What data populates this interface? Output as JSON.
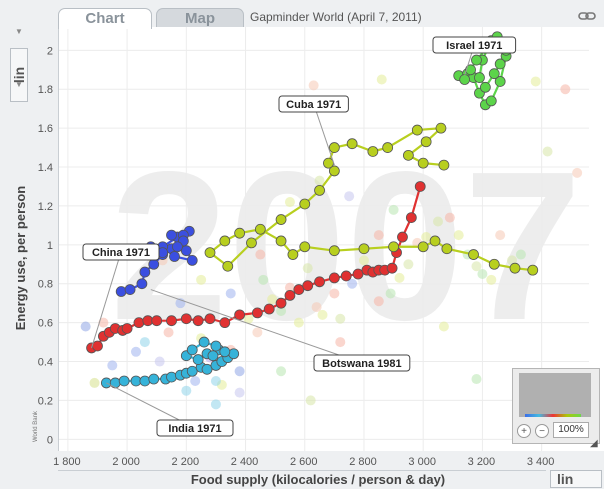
{
  "tabs": [
    {
      "label": "Chart",
      "active": true
    },
    {
      "label": "Map",
      "active": false
    }
  ],
  "page_title": "Gapminder World (April 7, 2011)",
  "y_scale": "lin",
  "x_scale": "lin",
  "zoom_level": "100%",
  "source_note": "World Bank",
  "icons": {
    "link": "link-icon",
    "zoom_in": "zoom-in-icon",
    "zoom_out": "zoom-out-icon"
  },
  "chart_data": {
    "type": "scatter",
    "year_watermark": "2007",
    "xlabel": "Food supply (kilocalories / person & day)",
    "ylabel": "Energy use, per person",
    "xlim": [
      1770,
      3560
    ],
    "ylim": [
      -0.06,
      2.12
    ],
    "x_ticks": [
      1800,
      2000,
      2200,
      2400,
      2600,
      2800,
      3000,
      3200,
      3400
    ],
    "x_tick_labels": [
      "1 800",
      "2 000",
      "2 200",
      "2 400",
      "2 600",
      "2 800",
      "3 000",
      "3 200",
      "3 400"
    ],
    "y_ticks": [
      0,
      0.2,
      0.4,
      0.6,
      0.8,
      1,
      1.2,
      1.4,
      1.6,
      1.8,
      2
    ],
    "y_tick_labels": [
      "0",
      "0.2",
      "0.4",
      "0.6",
      "0.8",
      "1",
      "1.2",
      "1.4",
      "1.6",
      "1.8",
      "2"
    ],
    "grid": true,
    "series": [
      {
        "color": "#e03131",
        "x": [
          1880,
          1900,
          1920,
          1940,
          1960,
          1985,
          2000,
          2040,
          2070,
          2100,
          2150,
          2200,
          2240,
          2280,
          2330,
          2380,
          2440,
          2480,
          2520,
          2550,
          2580,
          2610,
          2650,
          2700,
          2740,
          2780,
          2810,
          2830,
          2850,
          2870,
          2895,
          2910,
          2930,
          2960,
          2990
        ],
        "y": [
          0.47,
          0.48,
          0.53,
          0.55,
          0.57,
          0.56,
          0.57,
          0.6,
          0.61,
          0.61,
          0.61,
          0.62,
          0.61,
          0.62,
          0.6,
          0.64,
          0.65,
          0.67,
          0.7,
          0.74,
          0.77,
          0.79,
          0.81,
          0.83,
          0.84,
          0.85,
          0.87,
          0.86,
          0.87,
          0.87,
          0.88,
          0.96,
          1.04,
          1.14,
          1.3
        ]
      },
      {
        "color": "#3b4fe0",
        "x": [
          1980,
          2010,
          2050,
          2060,
          2090,
          2120,
          2150,
          2180,
          2200,
          2220,
          2160,
          2120,
          2170,
          2210,
          2190,
          2150,
          2190,
          2170,
          2120,
          2080
        ],
        "y": [
          0.76,
          0.77,
          0.8,
          0.86,
          0.9,
          0.95,
          0.98,
          1.02,
          0.97,
          0.92,
          0.94,
          0.99,
          1.04,
          1.07,
          1.05,
          1.05,
          1.02,
          0.99,
          0.96,
          0.99
        ]
      },
      {
        "color": "#36b3d9",
        "x": [
          1930,
          1960,
          1990,
          2030,
          2060,
          2090,
          2130,
          2150,
          2180,
          2200,
          2220,
          2250,
          2270,
          2300,
          2320,
          2340,
          2360,
          2310,
          2270,
          2240,
          2200,
          2220,
          2260,
          2300,
          2330,
          2290
        ],
        "y": [
          0.29,
          0.29,
          0.3,
          0.3,
          0.3,
          0.31,
          0.31,
          0.32,
          0.33,
          0.34,
          0.35,
          0.37,
          0.36,
          0.38,
          0.4,
          0.42,
          0.44,
          0.46,
          0.44,
          0.41,
          0.43,
          0.46,
          0.5,
          0.48,
          0.45,
          0.43
        ]
      },
      {
        "color": "#b8cf1f",
        "x": [
          3370,
          3310,
          3240,
          3170,
          3080,
          3040,
          3000,
          2900,
          2800,
          2700,
          2600,
          2560,
          2520,
          2450,
          2380,
          2330,
          2280,
          2340,
          2420,
          2520,
          2600,
          2650,
          2700,
          2680,
          2700,
          2760,
          2830,
          2880,
          2980,
          3060,
          3010,
          2950,
          3000,
          3070
        ],
        "y": [
          0.87,
          0.88,
          0.9,
          0.95,
          0.98,
          1.02,
          0.99,
          0.99,
          0.98,
          0.97,
          0.99,
          0.95,
          1.02,
          1.08,
          1.06,
          1.02,
          0.96,
          0.89,
          1.01,
          1.13,
          1.21,
          1.28,
          1.38,
          1.42,
          1.5,
          1.52,
          1.48,
          1.5,
          1.59,
          1.6,
          1.53,
          1.46,
          1.42,
          1.41
        ]
      },
      {
        "color": "#5cd44a",
        "x": [
          3120,
          3150,
          3170,
          3190,
          3210,
          3230,
          3260,
          3280,
          3230,
          3200,
          3190,
          3210,
          3240,
          3260,
          3280,
          3250,
          3220,
          3180,
          3160,
          3140
        ],
        "y": [
          1.87,
          1.88,
          1.86,
          1.78,
          1.72,
          1.74,
          1.84,
          1.97,
          2.05,
          1.95,
          1.86,
          1.81,
          1.88,
          1.93,
          2.0,
          2.07,
          2.02,
          1.95,
          1.9,
          1.85
        ]
      }
    ],
    "background_bubbles": {
      "x": [
        1860,
        1890,
        1950,
        1920,
        2030,
        2060,
        2110,
        2140,
        2200,
        2230,
        2250,
        2280,
        2300,
        2320,
        2350,
        2380,
        2410,
        2440,
        2460,
        2490,
        2520,
        2550,
        2580,
        2610,
        2640,
        2660,
        2700,
        2720,
        2760,
        2800,
        2850,
        2890,
        2920,
        2950,
        2980,
        3010,
        3050,
        3090,
        3120,
        3150,
        3180,
        3200,
        3230,
        3260,
        3300,
        3330,
        3380,
        3420,
        3480,
        3520,
        2350,
        2450,
        2550,
        2650,
        2750,
        2850,
        2900,
        2250,
        2180,
        2120,
        2300,
        2380,
        2520,
        2620,
        2720,
        3070,
        2630,
        2860,
        3180
      ],
      "y": [
        0.58,
        0.29,
        0.38,
        0.6,
        0.45,
        0.5,
        0.4,
        0.55,
        0.25,
        0.3,
        0.52,
        0.42,
        0.18,
        0.28,
        0.46,
        0.35,
        0.62,
        0.55,
        0.82,
        0.72,
        0.66,
        0.78,
        0.6,
        0.88,
        0.68,
        0.64,
        0.75,
        0.62,
        0.8,
        0.92,
        0.71,
        0.75,
        0.83,
        0.9,
        1.01,
        1.04,
        1.12,
        1.14,
        1.05,
        0.95,
        0.89,
        0.85,
        0.82,
        1.05,
        0.92,
        0.95,
        1.84,
        1.48,
        1.8,
        1.37,
        0.75,
        0.95,
        1.22,
        1.33,
        1.25,
        1.05,
        1.18,
        0.82,
        0.7,
        0.92,
        0.3,
        0.24,
        0.35,
        0.2,
        0.5,
        0.58,
        1.82,
        1.85,
        0.31
      ],
      "colors": [
        "#8fa6e6",
        "#d6e08a",
        "#9fb2ee",
        "#f5b5a5",
        "#9fb2ee",
        "#8fd3ea",
        "#c7c7ee",
        "#f5b5a5",
        "#8fd3ea",
        "#9fb2ee",
        "#e3ec98",
        "#b9a6ee",
        "#8fd3ea",
        "#e3ec98",
        "#f5b5a5",
        "#8fa6e6",
        "#e3ec98",
        "#f5c8b5",
        "#b8e6b0",
        "#e6ec98",
        "#b8e6b0",
        "#f5b5a5",
        "#e3ec98",
        "#d7e6a8",
        "#f5c8b5",
        "#e3ec98",
        "#f5b5a5",
        "#d7e6a8",
        "#9fb2ee",
        "#e3ec98",
        "#f5b5a5",
        "#b8e6b0",
        "#e3ec98",
        "#d7e6a8",
        "#f5c8b5",
        "#e3ec98",
        "#d7e6a8",
        "#f5b5a5",
        "#e3ec98",
        "#b8e6b0",
        "#d7e6a8",
        "#b8e6b0",
        "#e3ec98",
        "#f5c8b5",
        "#d7e6a8",
        "#b8e6b0",
        "#e3ec98",
        "#d7e6a8",
        "#f5b5a5",
        "#f5c8b5",
        "#9fb2ee",
        "#f5b5a5",
        "#e3ec98",
        "#d7e6a8",
        "#c7c7ee",
        "#f5b5a5",
        "#b8e6b0",
        "#e3ec98",
        "#9fb2ee",
        "#f5c8b5",
        "#8fd3ea",
        "#c7c7ee",
        "#b8e6b0",
        "#d7e6a8",
        "#f5b5a5",
        "#e3ec98",
        "#f5c8b5",
        "#e3ec98",
        "#b8e6b0"
      ]
    },
    "annotations": [
      {
        "text": "Israel 1971",
        "x": 3140,
        "y": 1.87
      },
      {
        "text": "Cuba 1971",
        "x": 2700,
        "y": 1.41
      },
      {
        "text": "China 1971",
        "x": 1880,
        "y": 0.47
      },
      {
        "text": "Botswana 1981",
        "x": 2080,
        "y": 0.77
      },
      {
        "text": "India 1971",
        "x": 1930,
        "y": 0.29
      }
    ]
  }
}
